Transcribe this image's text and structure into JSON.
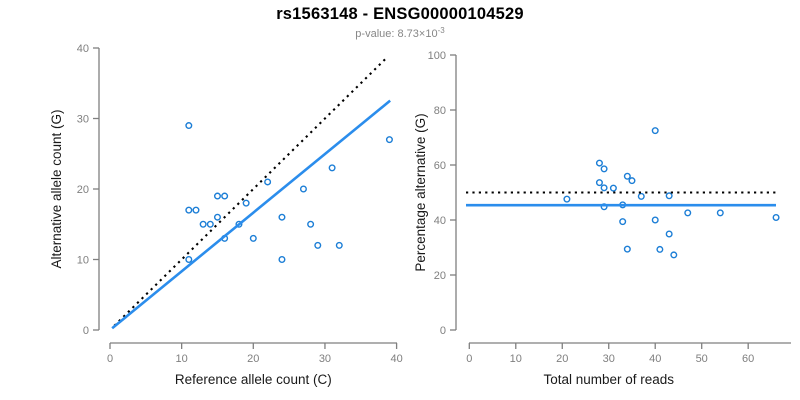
{
  "header": {
    "title": "rs1563148 - ENSG00000104529",
    "subtitle_prefix": "p-value: 8.73×10",
    "subtitle_exponent": "-3"
  },
  "colors": {
    "fit_line_blue": "#2b8dec",
    "point_blue": "#1c7ed6",
    "dotted_line": "#000000",
    "axis": "#7f7f7f",
    "tick_label": "#7f7f7f",
    "axis_label": "#1a1a1a",
    "title": "#000000",
    "subtitle": "#878787"
  },
  "chart_data": [
    {
      "type": "scatter",
      "name": "allele-counts-scatter",
      "xlabel": "Reference allele count (C)",
      "ylabel": "Alternative allele count (G)",
      "xlim": [
        0,
        40
      ],
      "ylim": [
        0,
        40
      ],
      "xticks": [
        0,
        10,
        20,
        30,
        40
      ],
      "yticks": [
        0,
        10,
        20,
        30,
        40
      ],
      "grid": false,
      "legend": null,
      "points": [
        [
          11,
          29
        ],
        [
          39,
          27
        ],
        [
          31,
          23
        ],
        [
          27,
          20
        ],
        [
          22,
          21
        ],
        [
          15,
          19
        ],
        [
          16,
          19
        ],
        [
          19,
          18
        ],
        [
          11,
          17
        ],
        [
          12,
          17
        ],
        [
          24,
          16
        ],
        [
          13,
          15
        ],
        [
          14,
          15
        ],
        [
          15,
          16
        ],
        [
          18,
          15
        ],
        [
          28,
          15
        ],
        [
          16,
          13
        ],
        [
          20,
          13
        ],
        [
          29,
          12
        ],
        [
          32,
          12
        ],
        [
          11,
          10
        ],
        [
          24,
          10
        ]
      ],
      "lines": [
        {
          "name": "identity-line",
          "kind": "ab",
          "slope": 1,
          "intercept": 0,
          "x_range": [
            0.6,
            38.7
          ],
          "style": "dotted",
          "color": "black"
        },
        {
          "name": "fit-line",
          "kind": "ab",
          "slope": 0.832,
          "intercept": 0,
          "x_range": [
            0.3,
            39.1
          ],
          "style": "solid",
          "color": "blue"
        }
      ]
    },
    {
      "type": "scatter",
      "name": "percentage-vs-reads-scatter",
      "xlabel": "Total number of reads",
      "ylabel": "Percentage alternative (G)",
      "xlim": [
        0,
        66
      ],
      "ylim": [
        0,
        100
      ],
      "xticks": [
        0,
        10,
        20,
        30,
        40,
        50,
        60
      ],
      "yticks": [
        0,
        20,
        40,
        60,
        80,
        100
      ],
      "grid": false,
      "legend": null,
      "points": [
        [
          40,
          72.5
        ],
        [
          66,
          40.9
        ],
        [
          54,
          42.6
        ],
        [
          47,
          42.6
        ],
        [
          43,
          48.8
        ],
        [
          34,
          55.9
        ],
        [
          35,
          54.3
        ],
        [
          37,
          48.6
        ],
        [
          28,
          60.7
        ],
        [
          29,
          58.6
        ],
        [
          40,
          40.0
        ],
        [
          28,
          53.6
        ],
        [
          29,
          51.7
        ],
        [
          31,
          51.6
        ],
        [
          33,
          45.5
        ],
        [
          43,
          34.9
        ],
        [
          29,
          44.8
        ],
        [
          33,
          39.4
        ],
        [
          41,
          29.3
        ],
        [
          44,
          27.3
        ],
        [
          21,
          47.6
        ],
        [
          34,
          29.4
        ]
      ],
      "lines": [
        {
          "name": "null-50pct-line",
          "kind": "h",
          "y": 50,
          "style": "dotted",
          "color": "black"
        },
        {
          "name": "fit-line",
          "kind": "h",
          "y": 45.4,
          "style": "solid",
          "color": "blue"
        }
      ]
    }
  ]
}
